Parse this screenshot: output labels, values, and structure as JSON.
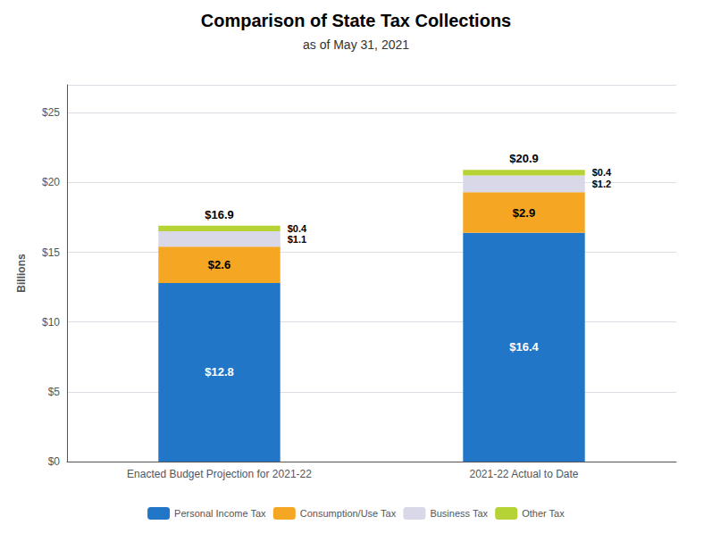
{
  "chart_data": {
    "type": "bar",
    "title": "Comparison of State Tax Collections",
    "subtitle": "as of May 31, 2021",
    "categories": [
      "Enacted Budget Projection for 2021-22",
      "2021-22 Actual to Date"
    ],
    "stacked": true,
    "data_labels": true,
    "series": [
      {
        "name": "Personal Income Tax",
        "color": "#2176c7",
        "values": [
          12.8,
          16.4
        ],
        "value_labels": [
          "$12.8",
          "$16.4"
        ]
      },
      {
        "name": "Consumption/Use Tax",
        "color": "#f5a623",
        "values": [
          2.6,
          2.9
        ],
        "value_labels": [
          "$2.6",
          "$2.9"
        ]
      },
      {
        "name": "Business Tax",
        "color": "#d8d8e8",
        "values": [
          1.1,
          1.2
        ],
        "value_labels": [
          "$1.1",
          "$1.2"
        ]
      },
      {
        "name": "Other Tax",
        "color": "#b5d335",
        "values": [
          0.4,
          0.4
        ],
        "value_labels": [
          "$0.4",
          "$0.4"
        ]
      }
    ],
    "totals": [
      16.9,
      20.9
    ],
    "total_labels": [
      "$16.9",
      "$20.9"
    ],
    "ylabel": "Billions",
    "ylim": [
      0,
      27
    ],
    "yticks": [
      {
        "value": 0,
        "label": "$0"
      },
      {
        "value": 5,
        "label": "$5"
      },
      {
        "value": 10,
        "label": "$10"
      },
      {
        "value": 15,
        "label": "$15"
      },
      {
        "value": 20,
        "label": "$20"
      },
      {
        "value": 25,
        "label": "$25"
      }
    ],
    "grid": true,
    "legend": "bottom"
  }
}
